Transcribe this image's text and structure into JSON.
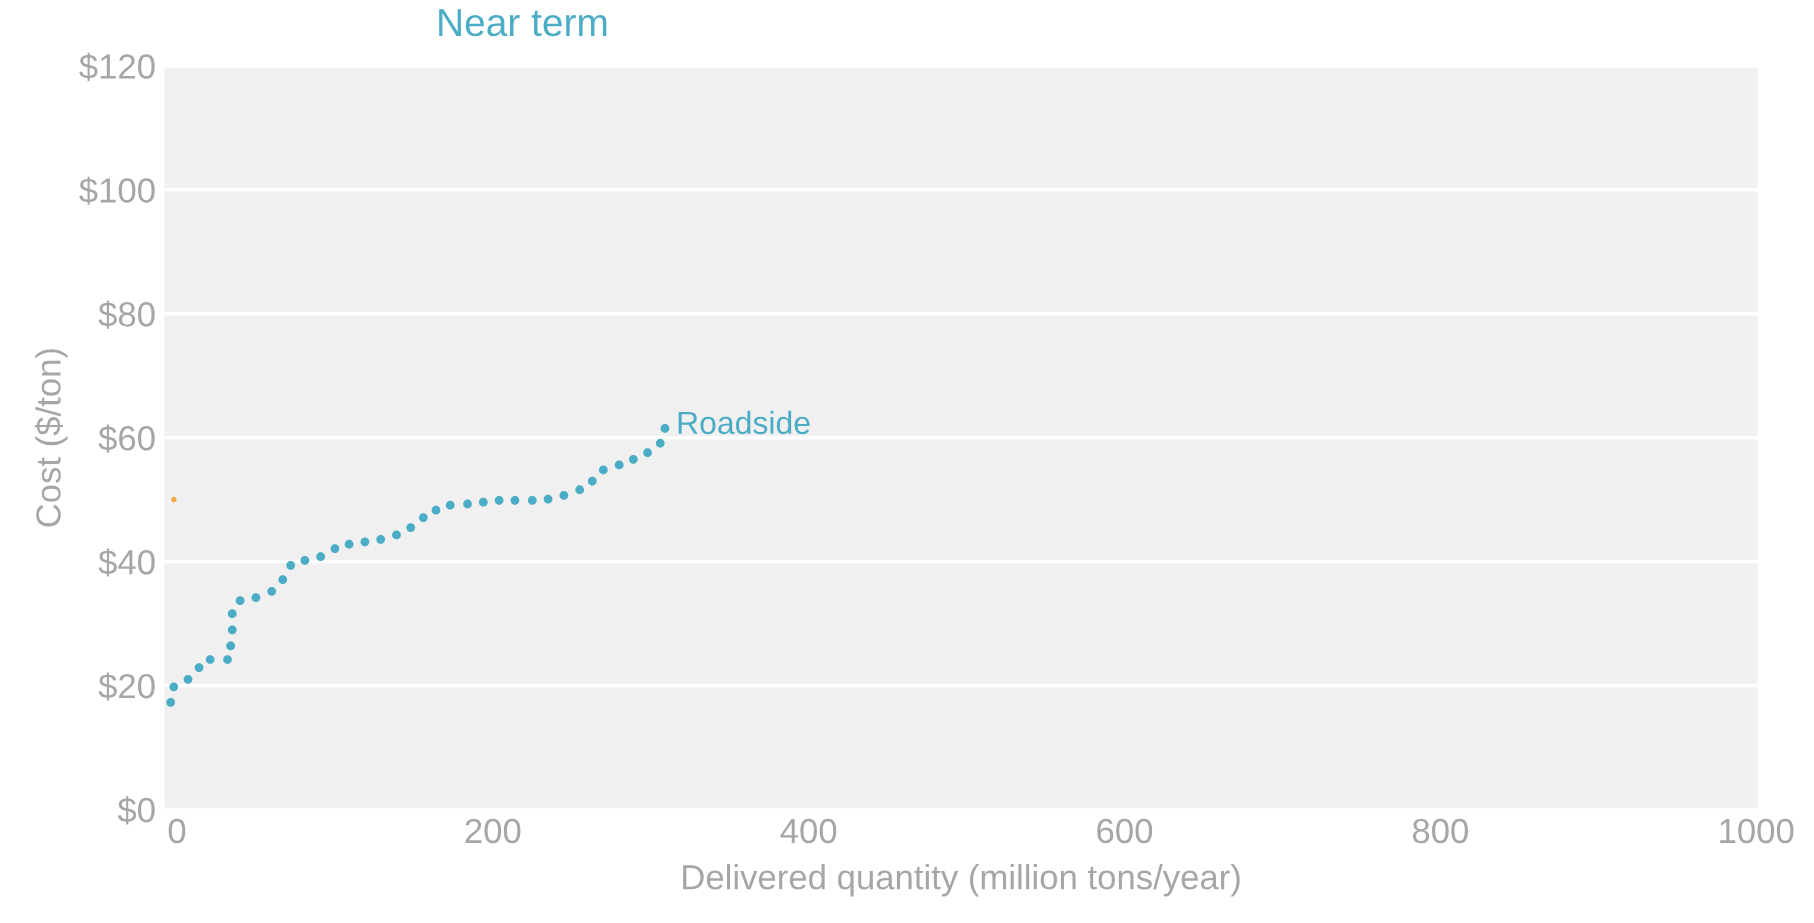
{
  "chart_data": {
    "type": "scatter",
    "title": "Near term",
    "xlabel": "Delivered quantity (million tons/year)",
    "ylabel": "Cost ($/ton)",
    "xlim": [
      -8,
      1001
    ],
    "ylim": [
      0,
      120
    ],
    "xticks": [
      0,
      200,
      400,
      600,
      800,
      1000
    ],
    "yticks": [
      {
        "value": 0,
        "label": "$0"
      },
      {
        "value": 20,
        "label": "$20"
      },
      {
        "value": 40,
        "label": "$40"
      },
      {
        "value": 60,
        "label": "$60"
      },
      {
        "value": 80,
        "label": "$80"
      },
      {
        "value": 100,
        "label": "$100"
      },
      {
        "value": 120,
        "label": "$120"
      }
    ],
    "grid": "y",
    "marker": "circle",
    "series": [
      {
        "color": "#f5a742",
        "x": [
          -2
        ],
        "values": [
          50
        ]
      },
      {
        "name": "Roadside",
        "color": "#4bacc6",
        "x": [
          -4,
          -2,
          7,
          14,
          21,
          32,
          34,
          35,
          35,
          40,
          50,
          60,
          67,
          72,
          81,
          91,
          100,
          109,
          119,
          129,
          139,
          148,
          156,
          164,
          173,
          184,
          194,
          204,
          214,
          225,
          235,
          245,
          255,
          263,
          270,
          280,
          289,
          298,
          306,
          309
        ],
        "values": [
          17.3,
          19.8,
          21.0,
          22.9,
          24.2,
          24.2,
          26.4,
          29.0,
          31.6,
          33.7,
          34.2,
          35.2,
          37.1,
          39.4,
          40.2,
          40.8,
          42.1,
          42.8,
          43.2,
          43.6,
          44.3,
          45.5,
          47.1,
          48.3,
          49.1,
          49.3,
          49.6,
          49.9,
          49.9,
          49.9,
          50.1,
          50.7,
          51.6,
          53.0,
          54.8,
          55.6,
          56.5,
          57.6,
          59.1,
          61.5
        ]
      }
    ]
  }
}
